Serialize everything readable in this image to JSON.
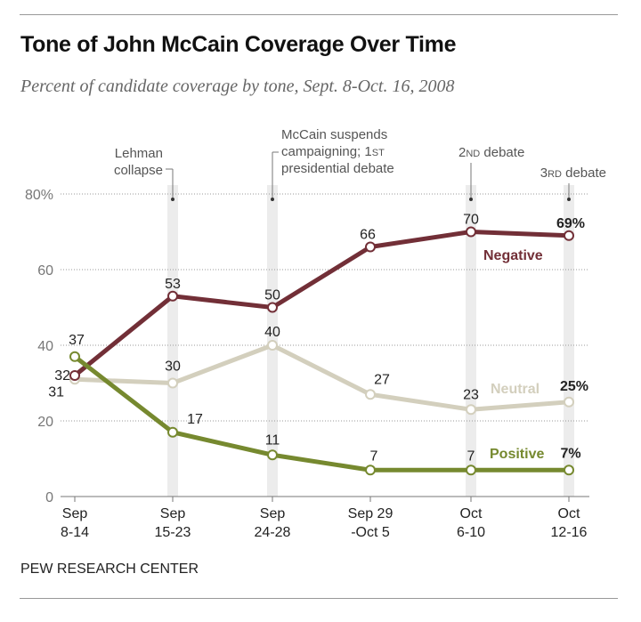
{
  "title": "Tone of John McCain Coverage Over Time",
  "subtitle": "Percent of candidate coverage by tone, Sept. 8-Oct. 16, 2008",
  "source": "PEW RESEARCH CENTER",
  "chart_data": {
    "type": "line",
    "categories": [
      {
        "line1": "Sep",
        "line2": "8-14"
      },
      {
        "line1": "Sep",
        "line2": "15-23"
      },
      {
        "line1": "Sep",
        "line2": "24-28"
      },
      {
        "line1": "Sep 29",
        "line2": "-Oct 5"
      },
      {
        "line1": "Oct",
        "line2": "6-10"
      },
      {
        "line1": "Oct",
        "line2": "12-16"
      }
    ],
    "ylim": [
      0,
      80
    ],
    "yticks": [
      {
        "value": 0,
        "label": "0"
      },
      {
        "value": 20,
        "label": "20"
      },
      {
        "value": 40,
        "label": "40"
      },
      {
        "value": 60,
        "label": "60"
      },
      {
        "value": 80,
        "label": "80%"
      }
    ],
    "series": [
      {
        "name": "Negative",
        "color": "#722f37",
        "values": [
          32,
          53,
          50,
          66,
          70,
          69
        ],
        "labels": [
          "32",
          "53",
          "50",
          "66",
          "70",
          "69%"
        ]
      },
      {
        "name": "Neutral",
        "color": "#d3cfbd",
        "values": [
          31,
          30,
          40,
          27,
          23,
          25
        ],
        "labels": [
          "31",
          "30",
          "40",
          "27",
          "23",
          "25%"
        ]
      },
      {
        "name": "Positive",
        "color": "#76892f",
        "values": [
          37,
          17,
          11,
          7,
          7,
          7
        ],
        "labels": [
          "37",
          "17",
          "11",
          "7",
          "7",
          "7%"
        ]
      }
    ],
    "annotations": [
      {
        "index": 1,
        "lines": [
          "Lehman",
          "collapse"
        ]
      },
      {
        "index": 2,
        "lines": [
          "McCain suspends",
          "campaigning; 1ST",
          "presidential debate"
        ]
      },
      {
        "index": 4,
        "lines": [
          "2ND debate"
        ]
      },
      {
        "index": 5,
        "lines": [
          "3RD debate"
        ]
      }
    ]
  }
}
